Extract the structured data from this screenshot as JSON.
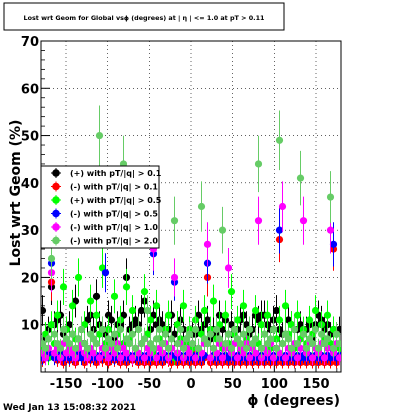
{
  "footer": {
    "timestamp": "Wed Jan 13 15:08:32 2021"
  },
  "chart_data": {
    "type": "scatter",
    "title": "Lost wrt Geom for Global vsϕ (degrees) at | η | <= 1.0 at pT > 0.11",
    "xlabel": "ϕ (degrees)",
    "ylabel": "Lost wrt Geom (%)",
    "xlim": [
      -180,
      180
    ],
    "ylim": [
      0,
      70
    ],
    "xticks": [
      -150,
      -100,
      -50,
      0,
      50,
      100,
      150
    ],
    "yticks": [
      10,
      20,
      30,
      40,
      50,
      60,
      70
    ],
    "grid": true,
    "legend_position": "left-middle",
    "n_bins": 100,
    "x": [
      -178.2,
      -174.6,
      -171.0,
      -167.4,
      -163.8,
      -160.2,
      -156.6,
      -153.0,
      -149.4,
      -145.8,
      -142.2,
      -138.6,
      -135.0,
      -131.4,
      -127.8,
      -124.2,
      -120.6,
      -117.0,
      -113.4,
      -109.8,
      -106.2,
      -102.6,
      -99.0,
      -95.4,
      -91.8,
      -88.2,
      -84.6,
      -81.0,
      -77.4,
      -73.8,
      -70.2,
      -66.6,
      -63.0,
      -59.4,
      -55.8,
      -52.2,
      -48.6,
      -45.0,
      -41.4,
      -37.8,
      -34.2,
      -30.6,
      -27.0,
      -23.4,
      -19.8,
      -16.2,
      -12.6,
      -9.0,
      -5.4,
      -1.8,
      1.8,
      5.4,
      9.0,
      12.6,
      16.2,
      19.8,
      23.4,
      27.0,
      30.6,
      34.2,
      37.8,
      41.4,
      45.0,
      48.6,
      52.2,
      55.8,
      59.4,
      63.0,
      66.6,
      70.2,
      73.8,
      77.4,
      81.0,
      84.6,
      88.2,
      91.8,
      95.4,
      99.0,
      102.6,
      106.2,
      109.8,
      113.4,
      117.0,
      120.6,
      124.2,
      127.8,
      131.4,
      135.0,
      138.6,
      142.2,
      145.8,
      149.4,
      153.0,
      156.6,
      160.2,
      163.8,
      167.4,
      171.0,
      174.6,
      178.2
    ],
    "series": [
      {
        "name": "(+) with pT/|q| > 0.1",
        "color": "#000000",
        "values": [
          13,
          7,
          9,
          18,
          10,
          11,
          12,
          8,
          9,
          10,
          8,
          15,
          7,
          9,
          6,
          11,
          12,
          9,
          16,
          10,
          9,
          8,
          12,
          11,
          7,
          10,
          10,
          12,
          20,
          9,
          10,
          11,
          10,
          13,
          15,
          8,
          9,
          12,
          10,
          11,
          10,
          9,
          9,
          12,
          8,
          10,
          11,
          9,
          7,
          9,
          8,
          8,
          12,
          9,
          10,
          11,
          7,
          9,
          8,
          12,
          9,
          11,
          8,
          10,
          9,
          9,
          11,
          12,
          10,
          8,
          9,
          12,
          11,
          12,
          12,
          10,
          9,
          11,
          13,
          9,
          8,
          8,
          11,
          10,
          9,
          9,
          10,
          8,
          9,
          10,
          7,
          10,
          12,
          11,
          9,
          10,
          8,
          9,
          8,
          9
        ]
      },
      {
        "name": "(-) with pT/|q| > 0.1",
        "color": "#ff0000",
        "values": [
          2.5,
          3,
          4,
          19,
          3,
          2.5,
          3.5,
          2,
          3,
          2.5,
          3,
          2,
          3,
          3.5,
          2,
          3,
          2.5,
          3,
          2,
          3,
          2.5,
          3,
          2,
          3,
          2.5,
          3,
          2,
          3,
          2,
          3,
          2.5,
          3,
          2,
          3,
          2,
          3,
          2,
          3,
          2,
          3,
          2,
          3,
          2.5,
          2,
          3,
          2,
          3,
          2,
          3,
          2,
          4,
          2,
          3,
          2,
          3,
          20,
          2,
          3,
          2,
          3,
          2,
          3,
          2,
          3,
          2,
          3,
          2,
          3,
          2,
          3,
          2,
          3,
          2,
          3,
          2,
          3,
          2,
          3,
          2,
          28,
          2,
          3,
          2,
          3,
          2,
          3,
          2,
          3,
          2,
          3,
          2,
          3,
          2,
          3,
          2,
          3,
          2,
          26,
          2,
          3
        ]
      },
      {
        "name": "(+) with pT/|q| > 0.5",
        "color": "#00ff00",
        "values": [
          5,
          8,
          3,
          10,
          6,
          12,
          4,
          18,
          9,
          5,
          14,
          7,
          20,
          6,
          10,
          4,
          15,
          7,
          12,
          8,
          22,
          6,
          9,
          5,
          16,
          8,
          11,
          6,
          18,
          7,
          13,
          5,
          9,
          6,
          17,
          8,
          11,
          4,
          14,
          7,
          6,
          9,
          12,
          5,
          3,
          10,
          7,
          14,
          6,
          9,
          5,
          11,
          4,
          8,
          13,
          6,
          9,
          15,
          7,
          10,
          5,
          12,
          6,
          17,
          8,
          11,
          4,
          14,
          7,
          9,
          5,
          13,
          6,
          10,
          8,
          12,
          5,
          9,
          7,
          11,
          6,
          14,
          8,
          10,
          5,
          12,
          7,
          9,
          6,
          11,
          8,
          13,
          5,
          10,
          7,
          12,
          6,
          9,
          8,
          5
        ]
      },
      {
        "name": "(-) with pT/|q| > 0.5",
        "color": "#0000ff",
        "values": [
          3,
          4,
          4,
          23,
          3,
          3.5,
          4,
          3,
          3.5,
          3,
          3.5,
          3,
          4,
          3,
          3.5,
          3,
          3.5,
          3,
          3.5,
          3,
          3.5,
          21,
          3,
          3.5,
          3,
          3.5,
          3,
          3.5,
          3,
          3.5,
          3,
          3.5,
          3,
          3.5,
          3,
          3.5,
          3,
          25,
          3,
          3.5,
          3,
          3.5,
          3,
          3.5,
          19,
          3,
          3.5,
          3,
          3.5,
          3,
          3.5,
          3,
          3.5,
          3,
          3.5,
          23,
          3,
          3.5,
          3,
          3.5,
          3,
          3.5,
          3,
          3.5,
          3,
          3.5,
          3,
          3.5,
          3,
          3.5,
          3,
          3.5,
          3,
          3.5,
          3,
          3.5,
          3,
          3.5,
          3,
          30,
          3,
          3.5,
          3,
          3.5,
          3,
          3.5,
          3,
          3.5,
          3,
          3.5,
          3,
          3.5,
          3,
          3.5,
          3,
          3.5,
          3,
          27,
          3,
          3.5
        ]
      },
      {
        "name": "(-) with pT/|q| > 1.0",
        "color": "#ff00ff",
        "values": [
          4,
          3,
          5,
          21,
          4,
          5,
          3,
          6,
          4,
          5,
          4,
          3,
          5,
          6,
          4,
          3,
          5,
          4,
          6,
          3,
          5,
          4,
          3,
          5,
          4,
          6,
          3,
          5,
          4,
          6,
          3,
          5,
          4,
          6,
          3,
          5,
          4,
          26,
          3,
          5,
          4,
          6,
          3,
          5,
          20,
          4,
          6,
          3,
          5,
          4,
          6,
          3,
          5,
          4,
          6,
          27,
          3,
          5,
          4,
          6,
          3,
          5,
          22,
          4,
          6,
          3,
          5,
          4,
          6,
          3,
          5,
          4,
          32,
          3,
          5,
          4,
          6,
          3,
          5,
          4,
          35,
          3,
          5,
          4,
          6,
          3,
          5,
          32,
          4,
          6,
          3,
          5,
          4,
          6,
          3,
          5,
          30,
          4,
          6,
          3
        ]
      },
      {
        "name": "(-) with pT/|q| > 2.0",
        "color": "#66cc66",
        "values": [
          6,
          5,
          7,
          24,
          8,
          6,
          5,
          9,
          7,
          6,
          8,
          5,
          7,
          9,
          6,
          5,
          8,
          7,
          6,
          50,
          9,
          5,
          7,
          6,
          8,
          5,
          9,
          44,
          7,
          6,
          8,
          5,
          9,
          6,
          7,
          13,
          6,
          5,
          7,
          9,
          6,
          8,
          5,
          7,
          32,
          6,
          9,
          5,
          7,
          8,
          6,
          9,
          5,
          35,
          7,
          6,
          8,
          5,
          9,
          7,
          30,
          6,
          8,
          5,
          9,
          7,
          6,
          8,
          5,
          9,
          6,
          7,
          44,
          5,
          8,
          6,
          7,
          9,
          5,
          49,
          6,
          8,
          7,
          5,
          9,
          6,
          41,
          8,
          5,
          7,
          6,
          9,
          5,
          8,
          6,
          7,
          37,
          5,
          8,
          6
        ]
      }
    ]
  }
}
